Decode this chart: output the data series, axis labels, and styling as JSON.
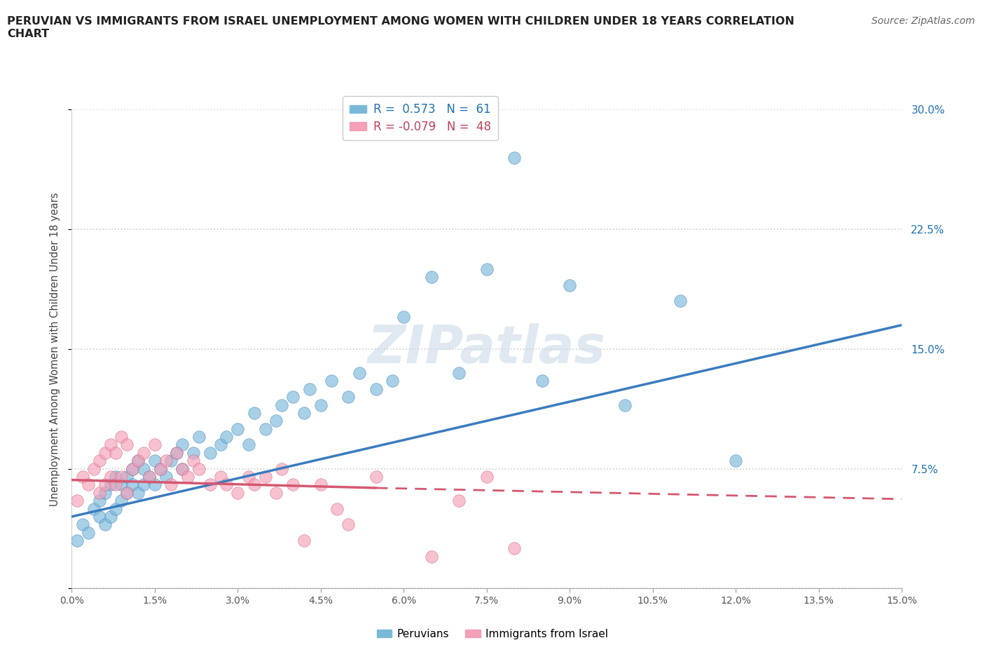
{
  "title": "PERUVIAN VS IMMIGRANTS FROM ISRAEL UNEMPLOYMENT AMONG WOMEN WITH CHILDREN UNDER 18 YEARS CORRELATION\nCHART",
  "source": "Source: ZipAtlas.com",
  "ylabel_label": "Unemployment Among Women with Children Under 18 years",
  "legend_entry1": "R =  0.573   N =  61",
  "legend_entry2": "R = -0.079   N =  48",
  "legend_label1": "Peruvians",
  "legend_label2": "Immigrants from Israel",
  "color_blue": "#7ab8d9",
  "color_pink": "#f4a0b8",
  "color_blue_line": "#3a7bbf",
  "color_pink_line": "#d45870",
  "color_blue_dark": "#2171b5",
  "color_pink_dark": "#c0405a",
  "watermark": "ZIPatlas",
  "xlim": [
    0.0,
    0.15
  ],
  "ylim": [
    0.0,
    0.3
  ],
  "blue_line_x0": 0.0,
  "blue_line_y0": 0.045,
  "blue_line_x1": 0.15,
  "blue_line_y1": 0.165,
  "pink_line_solid_x0": 0.0,
  "pink_line_solid_y0": 0.068,
  "pink_line_solid_x1": 0.055,
  "pink_line_solid_y1": 0.063,
  "pink_line_dash_x0": 0.055,
  "pink_line_dash_y0": 0.063,
  "pink_line_dash_x1": 0.15,
  "pink_line_dash_y1": 0.056,
  "blue_scatter_x": [
    0.001,
    0.002,
    0.003,
    0.004,
    0.005,
    0.005,
    0.006,
    0.006,
    0.007,
    0.007,
    0.008,
    0.008,
    0.009,
    0.009,
    0.01,
    0.01,
    0.011,
    0.011,
    0.012,
    0.012,
    0.013,
    0.013,
    0.014,
    0.015,
    0.015,
    0.016,
    0.017,
    0.018,
    0.019,
    0.02,
    0.02,
    0.022,
    0.023,
    0.025,
    0.027,
    0.028,
    0.03,
    0.032,
    0.033,
    0.035,
    0.037,
    0.038,
    0.04,
    0.042,
    0.043,
    0.045,
    0.047,
    0.05,
    0.052,
    0.055,
    0.058,
    0.06,
    0.065,
    0.07,
    0.075,
    0.08,
    0.085,
    0.09,
    0.1,
    0.11,
    0.12
  ],
  "blue_scatter_y": [
    0.03,
    0.04,
    0.035,
    0.05,
    0.045,
    0.055,
    0.04,
    0.06,
    0.045,
    0.065,
    0.05,
    0.07,
    0.055,
    0.065,
    0.06,
    0.07,
    0.065,
    0.075,
    0.06,
    0.08,
    0.065,
    0.075,
    0.07,
    0.065,
    0.08,
    0.075,
    0.07,
    0.08,
    0.085,
    0.075,
    0.09,
    0.085,
    0.095,
    0.085,
    0.09,
    0.095,
    0.1,
    0.09,
    0.11,
    0.1,
    0.105,
    0.115,
    0.12,
    0.11,
    0.125,
    0.115,
    0.13,
    0.12,
    0.135,
    0.125,
    0.13,
    0.17,
    0.195,
    0.135,
    0.2,
    0.27,
    0.13,
    0.19,
    0.115,
    0.18,
    0.08
  ],
  "pink_scatter_x": [
    0.001,
    0.002,
    0.003,
    0.004,
    0.005,
    0.005,
    0.006,
    0.006,
    0.007,
    0.007,
    0.008,
    0.008,
    0.009,
    0.009,
    0.01,
    0.01,
    0.011,
    0.012,
    0.013,
    0.014,
    0.015,
    0.016,
    0.017,
    0.018,
    0.019,
    0.02,
    0.021,
    0.022,
    0.023,
    0.025,
    0.027,
    0.028,
    0.03,
    0.032,
    0.033,
    0.035,
    0.037,
    0.038,
    0.04,
    0.042,
    0.045,
    0.048,
    0.05,
    0.055,
    0.065,
    0.07,
    0.075,
    0.08
  ],
  "pink_scatter_y": [
    0.055,
    0.07,
    0.065,
    0.075,
    0.06,
    0.08,
    0.065,
    0.085,
    0.07,
    0.09,
    0.065,
    0.085,
    0.07,
    0.095,
    0.06,
    0.09,
    0.075,
    0.08,
    0.085,
    0.07,
    0.09,
    0.075,
    0.08,
    0.065,
    0.085,
    0.075,
    0.07,
    0.08,
    0.075,
    0.065,
    0.07,
    0.065,
    0.06,
    0.07,
    0.065,
    0.07,
    0.06,
    0.075,
    0.065,
    0.03,
    0.065,
    0.05,
    0.04,
    0.07,
    0.02,
    0.055,
    0.07,
    0.025
  ]
}
